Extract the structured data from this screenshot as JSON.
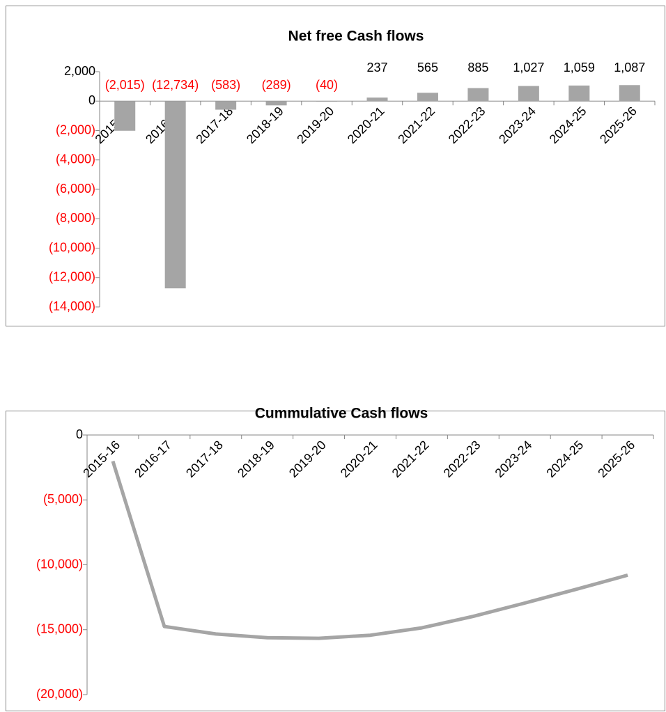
{
  "chart_data": [
    {
      "type": "bar",
      "title": "Net free Cash flows",
      "categories": [
        "2015-16",
        "2016-17",
        "2017-18",
        "2018-19",
        "2019-20",
        "2020-21",
        "2021-22",
        "2022-23",
        "2023-24",
        "2024-25",
        "2025-26"
      ],
      "values": [
        -2015,
        -12734,
        -583,
        -289,
        -40,
        237,
        565,
        885,
        1027,
        1059,
        1087
      ],
      "value_labels": [
        "(2,015)",
        "(12,734)",
        "(583)",
        "(289)",
        "(40)",
        "237",
        "565",
        "885",
        "1,027",
        "1,059",
        "1,087"
      ],
      "color": "#a5a5a5",
      "ylim": [
        -14000,
        2000
      ],
      "yticks": [
        {
          "value": 2000,
          "label": "2,000"
        },
        0,
        {
          "value": -2000,
          "label": "(2,000)"
        },
        {
          "value": -4000,
          "label": "(4,000)"
        },
        {
          "value": -6000,
          "label": "(6,000)"
        },
        {
          "value": -8000,
          "label": "(8,000)"
        },
        {
          "value": -10000,
          "label": "(10,000)"
        },
        {
          "value": -12000,
          "label": "(12,000)"
        },
        {
          "value": -14000,
          "label": "(14,000)"
        }
      ]
    },
    {
      "type": "line",
      "title": "Cummulative Cash flows",
      "categories": [
        "2015-16",
        "2016-17",
        "2017-18",
        "2018-19",
        "2019-20",
        "2020-21",
        "2021-22",
        "2022-23",
        "2023-24",
        "2024-25",
        "2025-26"
      ],
      "values": [
        -2015,
        -14749,
        -15332,
        -15621,
        -15661,
        -15424,
        -14859,
        -13974,
        -12947,
        -11888,
        -10801
      ],
      "color": "#a5a5a5",
      "ylim": [
        -20000,
        0
      ],
      "yticks": [
        0,
        {
          "value": -5000,
          "label": "(5,000)"
        },
        {
          "value": -10000,
          "label": "(10,000)"
        },
        {
          "value": -15000,
          "label": "(15,000)"
        },
        {
          "value": -20000,
          "label": "(20,000)"
        }
      ]
    }
  ]
}
